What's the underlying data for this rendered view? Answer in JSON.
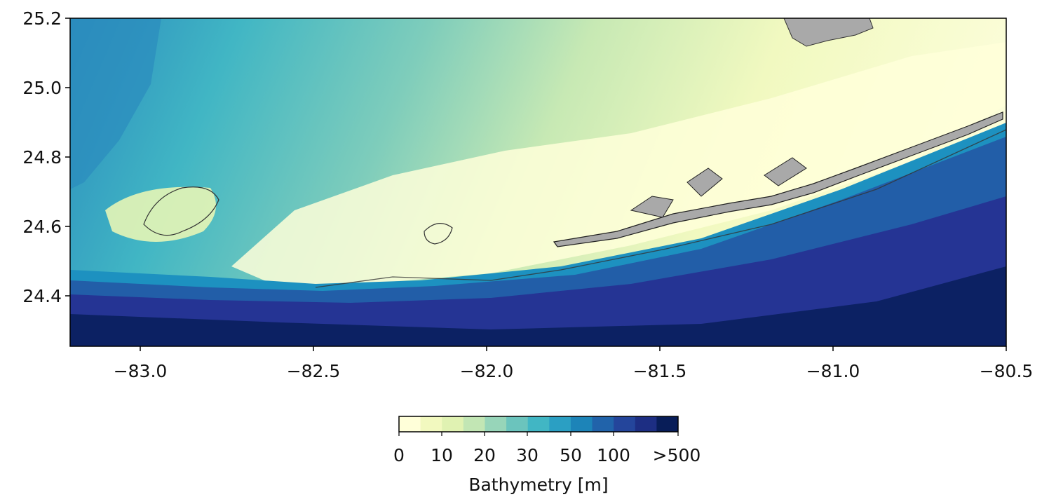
{
  "map": {
    "x_ticks": [
      "−83.0",
      "−82.5",
      "−82.0",
      "−81.5",
      "−81.0",
      "−80.5"
    ],
    "y_ticks": [
      "25.2",
      "25.0",
      "24.8",
      "24.6",
      "24.4"
    ],
    "x_range": [
      -83.2,
      -80.5
    ],
    "y_range": [
      24.25,
      25.2
    ],
    "land_color": "#a9a9a9"
  },
  "colorbar": {
    "title": "Bathymetry [m]",
    "tick_labels": [
      "0",
      "10",
      "20",
      "30",
      "50",
      "100",
      ">500"
    ],
    "colors": [
      "#ffffd9",
      "#f2f9bf",
      "#e0f2b2",
      "#c2e6b4",
      "#97d5b9",
      "#6bc4bd",
      "#41b6c4",
      "#2b9fc3",
      "#1d84b8",
      "#2163aa",
      "#24459b",
      "#1d2e83",
      "#081d58"
    ]
  }
}
